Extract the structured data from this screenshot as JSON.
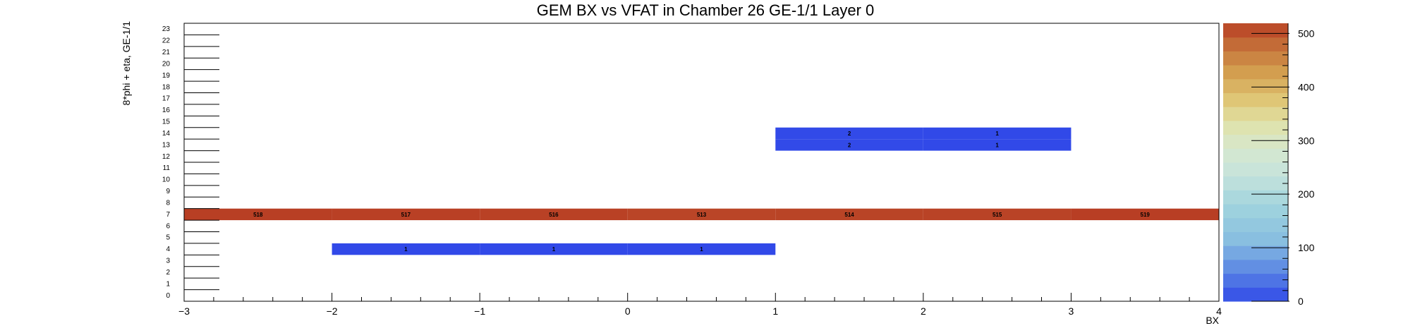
{
  "chart_data": {
    "type": "heatmap",
    "title": "GEM BX vs VFAT in Chamber 26 GE-1/1 Layer 0",
    "xlabel": "BX",
    "ylabel": "8*phi + eta, GE-1/1",
    "xlim": [
      -3,
      4
    ],
    "ylim": [
      0,
      24
    ],
    "x_ticks": [
      -3,
      -2,
      -1,
      0,
      1,
      2,
      3,
      4
    ],
    "x_tick_labels": [
      "−3",
      "−2",
      "−1",
      "0",
      "1",
      "2",
      "3",
      "4"
    ],
    "y_ticks": [
      0,
      1,
      2,
      3,
      4,
      5,
      6,
      7,
      8,
      9,
      10,
      11,
      12,
      13,
      14,
      15,
      16,
      17,
      18,
      19,
      20,
      21,
      22,
      23
    ],
    "y_tick_labels": [
      "0",
      "1",
      "2",
      "3",
      "4",
      "5",
      "6",
      "7",
      "8",
      "9",
      "10",
      "11",
      "12",
      "13",
      "14",
      "15",
      "16",
      "17",
      "18",
      "19",
      "20",
      "21",
      "22",
      "23"
    ],
    "colorbar": {
      "min": 0,
      "max": 519,
      "ticks": [
        0,
        100,
        200,
        300,
        400,
        500
      ],
      "tick_labels": [
        "0",
        "100",
        "200",
        "300",
        "400",
        "500"
      ]
    },
    "cells": [
      {
        "bx": -3,
        "y": 7,
        "value": 518
      },
      {
        "bx": -2,
        "y": 7,
        "value": 517
      },
      {
        "bx": -1,
        "y": 7,
        "value": 516
      },
      {
        "bx": 0,
        "y": 7,
        "value": 513
      },
      {
        "bx": 1,
        "y": 7,
        "value": 514
      },
      {
        "bx": 2,
        "y": 7,
        "value": 515
      },
      {
        "bx": 3,
        "y": 7,
        "value": 519
      },
      {
        "bx": -2,
        "y": 4,
        "value": 1
      },
      {
        "bx": -1,
        "y": 4,
        "value": 1
      },
      {
        "bx": 0,
        "y": 4,
        "value": 1
      },
      {
        "bx": 1,
        "y": 13,
        "value": 2
      },
      {
        "bx": 2,
        "y": 13,
        "value": 1
      },
      {
        "bx": 1,
        "y": 14,
        "value": 2
      },
      {
        "bx": 2,
        "y": 14,
        "value": 1
      }
    ],
    "grid": false,
    "legend": "none"
  }
}
